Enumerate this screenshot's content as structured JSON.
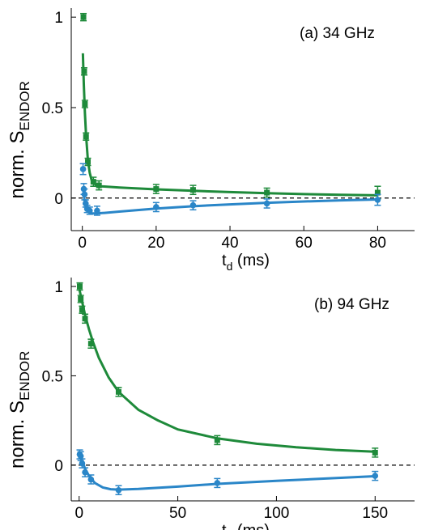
{
  "chart_data": [
    {
      "type": "scatter",
      "annotation": "(a)  34 GHz",
      "ylabel_main": "norm. S",
      "ylabel_sub": "ENDOR",
      "xlabel_main": "t",
      "xlabel_sub": "d",
      "xlabel_unit": " (ms)",
      "xlim": [
        -3,
        90
      ],
      "ylim": [
        -0.18,
        1.05
      ],
      "xticks": [
        0,
        20,
        40,
        60,
        80
      ],
      "yticks": [
        0,
        0.5,
        1
      ],
      "ytick_labels": [
        "0",
        "0.5",
        "1"
      ],
      "zero_line": true,
      "series": [
        {
          "color": "#1e8a3a",
          "marker": "square",
          "points": [
            {
              "x": 0.3,
              "y": 1.0,
              "err": 0.02
            },
            {
              "x": 0.5,
              "y": 0.7,
              "err": 0.02
            },
            {
              "x": 0.7,
              "y": 0.52,
              "err": 0.02
            },
            {
              "x": 1.0,
              "y": 0.34,
              "err": 0.02
            },
            {
              "x": 1.5,
              "y": 0.2,
              "err": 0.02
            },
            {
              "x": 3.0,
              "y": 0.09,
              "err": 0.025
            },
            {
              "x": 4.5,
              "y": 0.07,
              "err": 0.025
            },
            {
              "x": 20,
              "y": 0.05,
              "err": 0.025
            },
            {
              "x": 30,
              "y": 0.045,
              "err": 0.025
            },
            {
              "x": 50,
              "y": 0.03,
              "err": 0.025
            },
            {
              "x": 80,
              "y": 0.03,
              "err": 0.035
            }
          ],
          "fit": [
            [
              0.15,
              0.8
            ],
            [
              0.4,
              0.63
            ],
            [
              0.7,
              0.47
            ],
            [
              1.0,
              0.35
            ],
            [
              1.5,
              0.21
            ],
            [
              2.0,
              0.14
            ],
            [
              2.5,
              0.1
            ],
            [
              3.5,
              0.075
            ],
            [
              5,
              0.065
            ],
            [
              10,
              0.058
            ],
            [
              20,
              0.048
            ],
            [
              30,
              0.04
            ],
            [
              40,
              0.033
            ],
            [
              50,
              0.027
            ],
            [
              60,
              0.022
            ],
            [
              70,
              0.018
            ],
            [
              80,
              0.015
            ]
          ]
        },
        {
          "color": "#2a86c8",
          "marker": "circle",
          "points": [
            {
              "x": 0.2,
              "y": 0.16,
              "err": 0.03
            },
            {
              "x": 0.4,
              "y": 0.05,
              "err": 0.03
            },
            {
              "x": 0.6,
              "y": 0.02,
              "err": 0.03
            },
            {
              "x": 0.9,
              "y": -0.03,
              "err": 0.02
            },
            {
              "x": 1.3,
              "y": -0.06,
              "err": 0.02
            },
            {
              "x": 2.0,
              "y": -0.07,
              "err": 0.02
            },
            {
              "x": 4.0,
              "y": -0.07,
              "err": 0.025
            },
            {
              "x": 20,
              "y": -0.05,
              "err": 0.025
            },
            {
              "x": 30,
              "y": -0.04,
              "err": 0.025
            },
            {
              "x": 50,
              "y": -0.03,
              "err": 0.025
            },
            {
              "x": 80,
              "y": -0.01,
              "err": 0.03
            }
          ],
          "fit": [
            [
              0.3,
              0.03
            ],
            [
              0.8,
              -0.04
            ],
            [
              1.5,
              -0.07
            ],
            [
              2.5,
              -0.085
            ],
            [
              4,
              -0.085
            ],
            [
              6,
              -0.082
            ],
            [
              10,
              -0.075
            ],
            [
              20,
              -0.058
            ],
            [
              30,
              -0.045
            ],
            [
              40,
              -0.035
            ],
            [
              50,
              -0.026
            ],
            [
              60,
              -0.019
            ],
            [
              70,
              -0.013
            ],
            [
              80,
              -0.008
            ]
          ]
        }
      ]
    },
    {
      "type": "scatter",
      "annotation": "(b)  94 GHz",
      "ylabel_main": "norm. S",
      "ylabel_sub": "ENDOR",
      "xlabel_main": "t",
      "xlabel_sub": "d",
      "xlabel_unit": " (ms)",
      "xlim": [
        -4,
        170
      ],
      "ylim": [
        -0.2,
        1.05
      ],
      "xticks": [
        0,
        50,
        100,
        150
      ],
      "yticks": [
        0,
        0.5,
        1
      ],
      "ytick_labels": [
        "0",
        "0.5",
        "1"
      ],
      "zero_line": true,
      "series": [
        {
          "color": "#1e8a3a",
          "marker": "square",
          "points": [
            {
              "x": 0.3,
              "y": 1.0,
              "err": 0.02
            },
            {
              "x": 0.8,
              "y": 0.93,
              "err": 0.02
            },
            {
              "x": 1.5,
              "y": 0.87,
              "err": 0.02
            },
            {
              "x": 3.0,
              "y": 0.82,
              "err": 0.025
            },
            {
              "x": 6.0,
              "y": 0.68,
              "err": 0.025
            },
            {
              "x": 20,
              "y": 0.41,
              "err": 0.025
            },
            {
              "x": 70,
              "y": 0.14,
              "err": 0.025
            },
            {
              "x": 150,
              "y": 0.07,
              "err": 0.025
            }
          ],
          "fit": [
            [
              0.2,
              0.98
            ],
            [
              1,
              0.94
            ],
            [
              2,
              0.89
            ],
            [
              3,
              0.84
            ],
            [
              5,
              0.76
            ],
            [
              7,
              0.69
            ],
            [
              10,
              0.6
            ],
            [
              15,
              0.49
            ],
            [
              20,
              0.41
            ],
            [
              30,
              0.31
            ],
            [
              40,
              0.25
            ],
            [
              50,
              0.2
            ],
            [
              70,
              0.15
            ],
            [
              90,
              0.12
            ],
            [
              110,
              0.1
            ],
            [
              130,
              0.085
            ],
            [
              150,
              0.075
            ]
          ]
        },
        {
          "color": "#2a86c8",
          "marker": "circle",
          "points": [
            {
              "x": 0.3,
              "y": 0.06,
              "err": 0.025
            },
            {
              "x": 0.8,
              "y": 0.05,
              "err": 0.025
            },
            {
              "x": 1.5,
              "y": 0.01,
              "err": 0.025
            },
            {
              "x": 3.0,
              "y": -0.04,
              "err": 0.025
            },
            {
              "x": 6.0,
              "y": -0.08,
              "err": 0.025
            },
            {
              "x": 20,
              "y": -0.14,
              "err": 0.025
            },
            {
              "x": 70,
              "y": -0.1,
              "err": 0.025
            },
            {
              "x": 150,
              "y": -0.06,
              "err": 0.025
            }
          ],
          "fit": [
            [
              0.3,
              0.06
            ],
            [
              1,
              0.04
            ],
            [
              2,
              0.01
            ],
            [
              3,
              -0.02
            ],
            [
              5,
              -0.06
            ],
            [
              8,
              -0.1
            ],
            [
              12,
              -0.125
            ],
            [
              16,
              -0.135
            ],
            [
              20,
              -0.137
            ],
            [
              30,
              -0.133
            ],
            [
              50,
              -0.12
            ],
            [
              70,
              -0.105
            ],
            [
              100,
              -0.088
            ],
            [
              125,
              -0.075
            ],
            [
              150,
              -0.062
            ]
          ]
        }
      ]
    }
  ]
}
